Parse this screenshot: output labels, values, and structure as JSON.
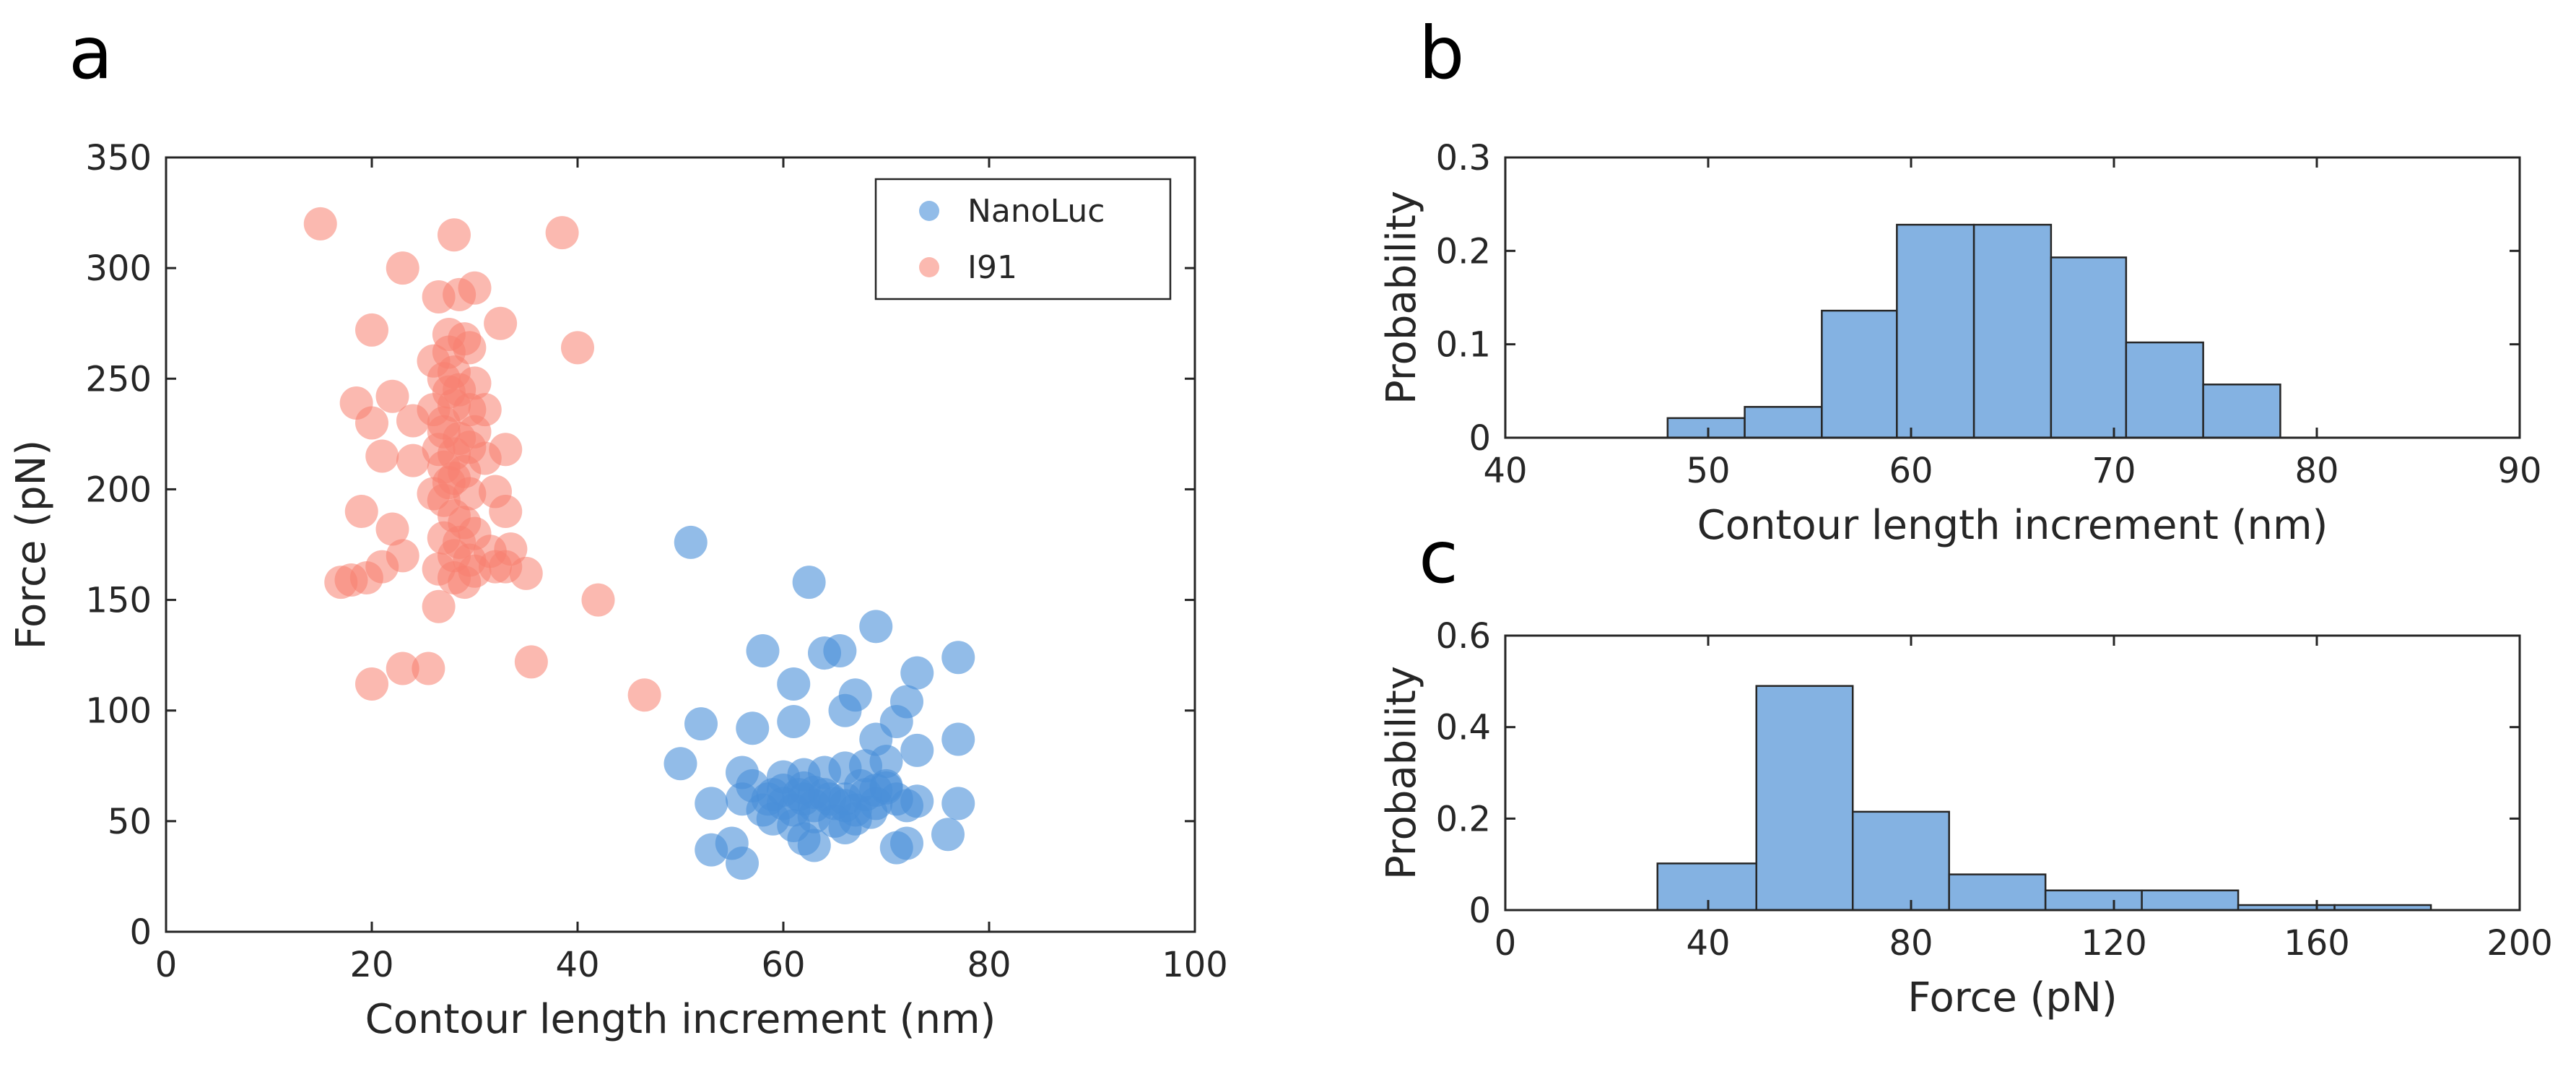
{
  "panels": {
    "a": "a",
    "b": "b",
    "c": "c"
  },
  "colors": {
    "nanoluc": "#4a90d9",
    "i91": "#f87f6f",
    "bar_fill": "#84b2e2",
    "axis": "#262626"
  },
  "chart_data": [
    {
      "id": "a",
      "type": "scatter",
      "title": "",
      "xlabel": "Contour length increment (nm)",
      "ylabel": "Force (pN)",
      "xlim": [
        0,
        100
      ],
      "ylim": [
        0,
        350
      ],
      "xticks": [
        0,
        20,
        40,
        60,
        80,
        100
      ],
      "yticks": [
        0,
        50,
        100,
        150,
        200,
        250,
        300,
        350
      ],
      "grid": false,
      "legend_placement": "top-right",
      "series": [
        {
          "name": "NanoLuc",
          "points": [
            [
              51,
              176
            ],
            [
              62.5,
              158
            ],
            [
              58,
              127
            ],
            [
              64,
              126
            ],
            [
              65.5,
              127
            ],
            [
              69,
              138
            ],
            [
              61,
              112
            ],
            [
              67,
              107
            ],
            [
              73,
              117
            ],
            [
              77,
              124
            ],
            [
              52,
              94
            ],
            [
              57,
              92
            ],
            [
              61,
              95
            ],
            [
              66,
              100
            ],
            [
              71,
              95
            ],
            [
              72,
              104
            ],
            [
              50,
              76
            ],
            [
              56,
              72
            ],
            [
              60,
              70
            ],
            [
              62,
              65
            ],
            [
              64,
              72
            ],
            [
              66,
              74
            ],
            [
              68,
              75
            ],
            [
              70,
              77
            ],
            [
              69,
              87
            ],
            [
              73,
              82
            ],
            [
              77,
              87
            ],
            [
              53,
              58
            ],
            [
              56,
              60
            ],
            [
              58,
              55
            ],
            [
              59,
              62
            ],
            [
              60,
              58
            ],
            [
              61,
              55
            ],
            [
              62,
              60
            ],
            [
              63,
              57
            ],
            [
              64,
              62
            ],
            [
              65,
              58
            ],
            [
              66,
              60
            ],
            [
              67,
              55
            ],
            [
              68,
              62
            ],
            [
              69,
              58
            ],
            [
              70,
              65
            ],
            [
              71,
              60
            ],
            [
              72,
              57
            ],
            [
              57,
              66
            ],
            [
              58.5,
              60
            ],
            [
              60,
              64
            ],
            [
              61.5,
              62
            ],
            [
              63,
              63
            ],
            [
              64.5,
              60
            ],
            [
              66,
              57
            ],
            [
              67.5,
              66
            ],
            [
              69,
              64
            ],
            [
              70,
              66
            ],
            [
              59,
              51
            ],
            [
              61,
              48
            ],
            [
              63,
              52
            ],
            [
              65,
              50
            ],
            [
              67,
              51
            ],
            [
              68.5,
              54
            ],
            [
              53,
              37
            ],
            [
              55,
              40
            ],
            [
              56,
              31
            ],
            [
              62,
              42
            ],
            [
              63,
              39
            ],
            [
              66,
              47
            ],
            [
              71,
              38
            ],
            [
              72,
              40
            ],
            [
              73,
              59
            ],
            [
              77,
              58
            ],
            [
              76,
              44
            ],
            [
              62,
              71
            ]
          ]
        },
        {
          "name": "I91",
          "points": [
            [
              15,
              320
            ],
            [
              28,
              315
            ],
            [
              38.5,
              316
            ],
            [
              23,
              300
            ],
            [
              30,
              291
            ],
            [
              26.5,
              287
            ],
            [
              28.5,
              288
            ],
            [
              32.5,
              275
            ],
            [
              20,
              272
            ],
            [
              29,
              268
            ],
            [
              26,
              258
            ],
            [
              40,
              264
            ],
            [
              27.5,
              262
            ],
            [
              29.5,
              264
            ],
            [
              27,
              250
            ],
            [
              28,
              253
            ],
            [
              30,
              248
            ],
            [
              27.5,
              244
            ],
            [
              18.5,
              239
            ],
            [
              22,
              242
            ],
            [
              20,
              230
            ],
            [
              24,
              231
            ],
            [
              26,
              236
            ],
            [
              28,
              238
            ],
            [
              29.5,
              236
            ],
            [
              31,
              236
            ],
            [
              27,
              226
            ],
            [
              28.5,
              223
            ],
            [
              30,
              226
            ],
            [
              26.5,
              218
            ],
            [
              28,
              216
            ],
            [
              29.5,
              219
            ],
            [
              31,
              214
            ],
            [
              33,
              218
            ],
            [
              21,
              215
            ],
            [
              24,
              213
            ],
            [
              27,
              210
            ],
            [
              29,
              208
            ],
            [
              27.5,
              203
            ],
            [
              29.5,
              198
            ],
            [
              32,
              199
            ],
            [
              33,
              190
            ],
            [
              28,
              188
            ],
            [
              19,
              190
            ],
            [
              26,
              198
            ],
            [
              27,
              178
            ],
            [
              28.5,
              176
            ],
            [
              30,
              180
            ],
            [
              22,
              182
            ],
            [
              28,
              170
            ],
            [
              29.5,
              168
            ],
            [
              31.5,
              172
            ],
            [
              33.5,
              173
            ],
            [
              23,
              170
            ],
            [
              21,
              165
            ],
            [
              26.5,
              164
            ],
            [
              28,
              160
            ],
            [
              29,
              158
            ],
            [
              30,
              163
            ],
            [
              32,
              165
            ],
            [
              18,
              159
            ],
            [
              19.5,
              160
            ],
            [
              17,
              158
            ],
            [
              33,
              165
            ],
            [
              35,
              162
            ],
            [
              42,
              150
            ],
            [
              26.5,
              147
            ],
            [
              20,
              112
            ],
            [
              23,
              119
            ],
            [
              25.5,
              119
            ],
            [
              35.5,
              122
            ],
            [
              46.5,
              107
            ],
            [
              27,
              230
            ],
            [
              28.5,
              245
            ],
            [
              27.5,
              270
            ],
            [
              28,
              205
            ],
            [
              29,
              185
            ],
            [
              27,
              195
            ]
          ]
        }
      ]
    },
    {
      "id": "b",
      "type": "bar",
      "title": "",
      "xlabel": "Contour length increment (nm)",
      "ylabel": "Probability",
      "xlim": [
        40,
        90
      ],
      "ylim": [
        0,
        0.3
      ],
      "xticks": [
        40,
        50,
        60,
        70,
        80,
        90
      ],
      "yticks": [
        0,
        0.1,
        0.2,
        0.3
      ],
      "grid": false,
      "bins": [
        [
          48,
          51.8,
          0.021
        ],
        [
          51.8,
          55.6,
          0.033
        ],
        [
          55.6,
          59.3,
          0.136
        ],
        [
          59.3,
          63.1,
          0.228
        ],
        [
          63.1,
          66.9,
          0.228
        ],
        [
          66.9,
          70.6,
          0.193
        ],
        [
          70.6,
          74.4,
          0.102
        ],
        [
          74.4,
          78.2,
          0.057
        ]
      ]
    },
    {
      "id": "c",
      "type": "bar",
      "title": "",
      "xlabel": "Force (pN)",
      "ylabel": "Probability",
      "xlim": [
        0,
        200
      ],
      "ylim": [
        0,
        0.6
      ],
      "xticks": [
        0,
        40,
        80,
        120,
        160,
        200
      ],
      "yticks": [
        0,
        0.2,
        0.4,
        0.6
      ],
      "grid": false,
      "bins": [
        [
          30,
          49.5,
          0.102
        ],
        [
          49.5,
          68.5,
          0.49
        ],
        [
          68.5,
          87.5,
          0.215
        ],
        [
          87.5,
          106.5,
          0.078
        ],
        [
          106.5,
          125.5,
          0.043
        ],
        [
          125.5,
          144.5,
          0.043
        ],
        [
          144.5,
          163.5,
          0.011
        ],
        [
          163.5,
          182.5,
          0.011
        ]
      ]
    }
  ]
}
